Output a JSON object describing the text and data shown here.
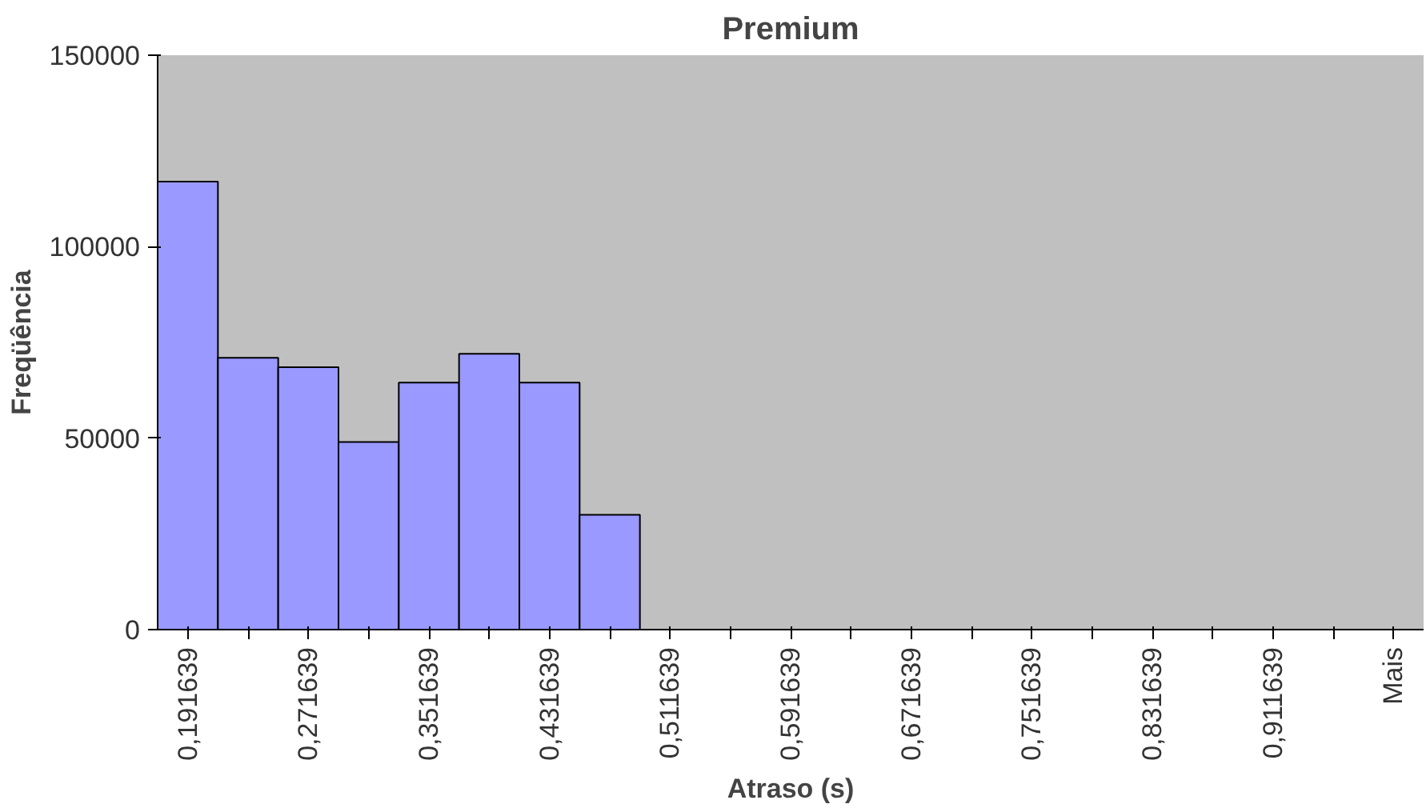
{
  "chart_data": {
    "type": "bar",
    "title": "Premium",
    "xlabel": "Atraso (s)",
    "ylabel": "Freqüência",
    "categories": [
      "0,191639",
      null,
      "0,271639",
      null,
      "0,351639",
      null,
      "0,431639",
      null,
      "0,511639",
      null,
      "0,591639",
      null,
      "0,671639",
      null,
      "0,751639",
      null,
      "0,831639",
      null,
      "0,911639",
      null,
      "Mais"
    ],
    "values": [
      117000,
      71000,
      68500,
      49000,
      64500,
      72000,
      64500,
      30000,
      0,
      0,
      0,
      0,
      0,
      0,
      0,
      0,
      0,
      0,
      0,
      0,
      0
    ],
    "color": "#9999ff",
    "ylim": [
      0,
      150000
    ],
    "yticks": [
      0,
      50000,
      100000,
      150000
    ],
    "grid": false
  }
}
